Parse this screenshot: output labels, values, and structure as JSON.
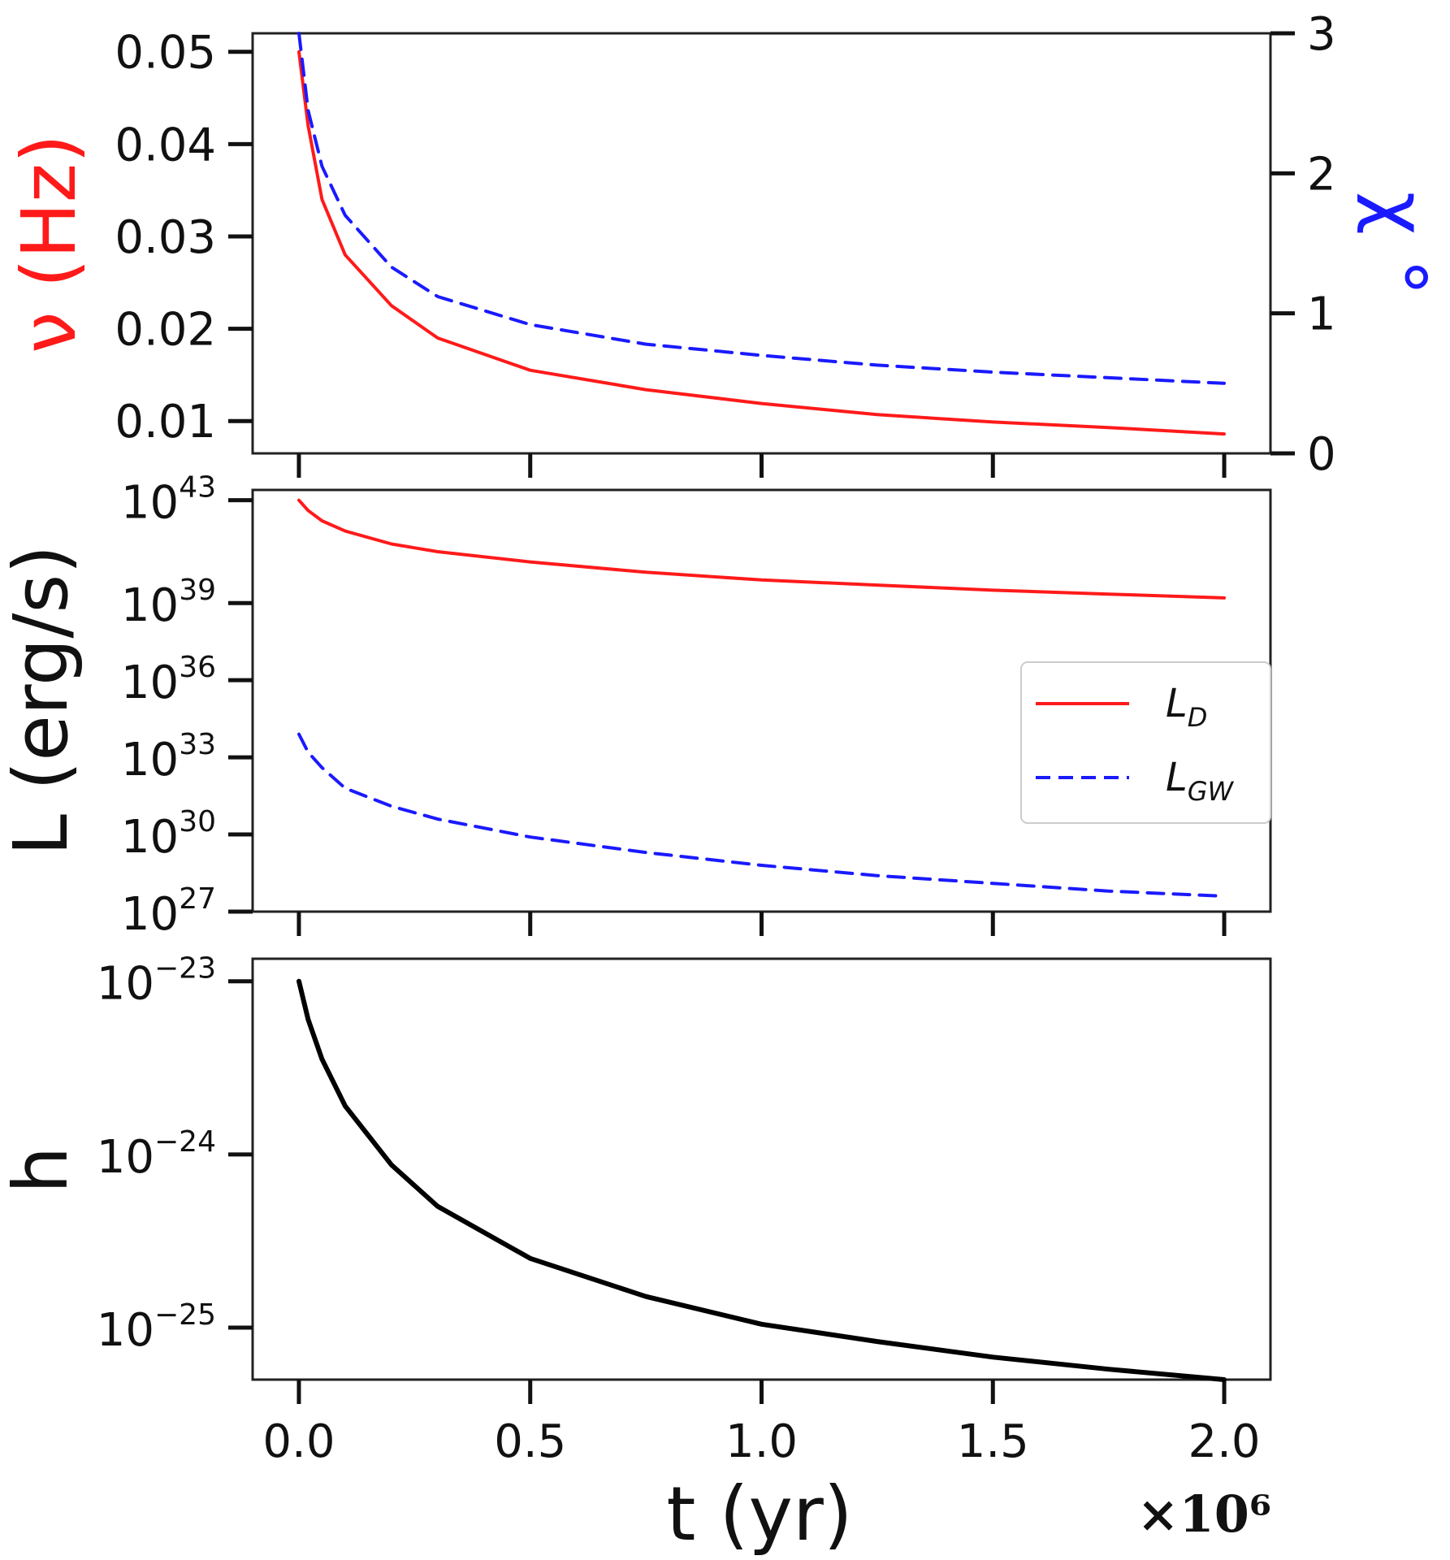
{
  "chart_data": [
    {
      "type": "line",
      "panel": "top",
      "xlabel": "t (yr)",
      "xlim": [
        -0.1,
        2.1
      ],
      "x_scale_note": "×10⁶",
      "ylabel": "ν (Hz)",
      "ylim": [
        0.0065,
        0.052
      ],
      "yticks": [
        0.01,
        0.02,
        0.03,
        0.04,
        0.05
      ],
      "ytick_labels": [
        "0.01",
        "0.02",
        "0.03",
        "0.04",
        "0.05"
      ],
      "y2label": "χ °",
      "y2lim": [
        0,
        3
      ],
      "y2ticks": [
        0,
        1,
        2,
        3
      ],
      "y2tick_labels": [
        "0",
        "1",
        "2",
        "3"
      ],
      "series": [
        {
          "name": "ν",
          "axis": "left",
          "color": "#ff1a1a",
          "style": "solid",
          "x": [
            0.0,
            0.02,
            0.05,
            0.1,
            0.2,
            0.3,
            0.5,
            0.75,
            1.0,
            1.25,
            1.5,
            1.75,
            2.0
          ],
          "values": [
            0.05,
            0.042,
            0.034,
            0.028,
            0.0225,
            0.019,
            0.0155,
            0.0134,
            0.0119,
            0.0107,
            0.0099,
            0.0093,
            0.0086
          ]
        },
        {
          "name": "χ",
          "axis": "right",
          "color": "#1a1aff",
          "style": "dashed",
          "x": [
            0.0,
            0.02,
            0.05,
            0.1,
            0.2,
            0.3,
            0.5,
            0.75,
            1.0,
            1.25,
            1.5,
            1.75,
            2.0
          ],
          "values": [
            3.0,
            2.45,
            2.05,
            1.7,
            1.33,
            1.12,
            0.92,
            0.78,
            0.7,
            0.63,
            0.58,
            0.54,
            0.5
          ]
        }
      ]
    },
    {
      "type": "line",
      "panel": "middle",
      "ylabel": "L (erg/s)",
      "yscale": "log",
      "ylim_log10": [
        27,
        43.4
      ],
      "ytick_exponents": [
        "43",
        "39",
        "36",
        "33",
        "30",
        "27"
      ],
      "ytick_base": "10",
      "legend": {
        "position": "center-right",
        "entries": [
          {
            "label": "L",
            "sub": "D",
            "color": "#ff1a1a",
            "style": "solid"
          },
          {
            "label": "L",
            "sub": "GW",
            "color": "#1a1aff",
            "style": "dashed"
          }
        ]
      },
      "series": [
        {
          "name": "L_D",
          "color": "#ff1a1a",
          "style": "solid",
          "x": [
            0.0,
            0.02,
            0.05,
            0.1,
            0.2,
            0.3,
            0.5,
            0.75,
            1.0,
            1.25,
            1.5,
            1.75,
            2.0
          ],
          "log10_values": [
            43.0,
            42.6,
            42.2,
            41.8,
            41.3,
            41.0,
            40.6,
            40.2,
            39.9,
            39.7,
            39.5,
            39.35,
            39.2
          ]
        },
        {
          "name": "L_GW",
          "color": "#1a1aff",
          "style": "dashed",
          "x": [
            0.0,
            0.02,
            0.05,
            0.1,
            0.2,
            0.3,
            0.5,
            0.75,
            1.0,
            1.25,
            1.5,
            1.75,
            2.0
          ],
          "log10_values": [
            33.9,
            33.2,
            32.6,
            31.8,
            31.1,
            30.6,
            29.9,
            29.3,
            28.8,
            28.4,
            28.1,
            27.8,
            27.6
          ]
        }
      ]
    },
    {
      "type": "line",
      "panel": "bottom",
      "ylabel": "h",
      "yscale": "log",
      "ylim_log10": [
        -25.3,
        -22.87
      ],
      "ytick_exponents": [
        "-23",
        "-24",
        "-25"
      ],
      "ytick_base": "10",
      "xticks": [
        0.0,
        0.5,
        1.0,
        1.5,
        2.0
      ],
      "xtick_labels": [
        "0.0",
        "0.5",
        "1.0",
        "1.5",
        "2.0"
      ],
      "series": [
        {
          "name": "h",
          "color": "#000000",
          "style": "solid",
          "x": [
            0.0,
            0.02,
            0.05,
            0.1,
            0.2,
            0.3,
            0.5,
            0.75,
            1.0,
            1.25,
            1.5,
            1.75,
            2.0
          ],
          "log10_values": [
            -23.0,
            -23.22,
            -23.45,
            -23.72,
            -24.06,
            -24.3,
            -24.6,
            -24.82,
            -24.98,
            -25.08,
            -25.17,
            -25.24,
            -25.3
          ]
        }
      ]
    }
  ]
}
